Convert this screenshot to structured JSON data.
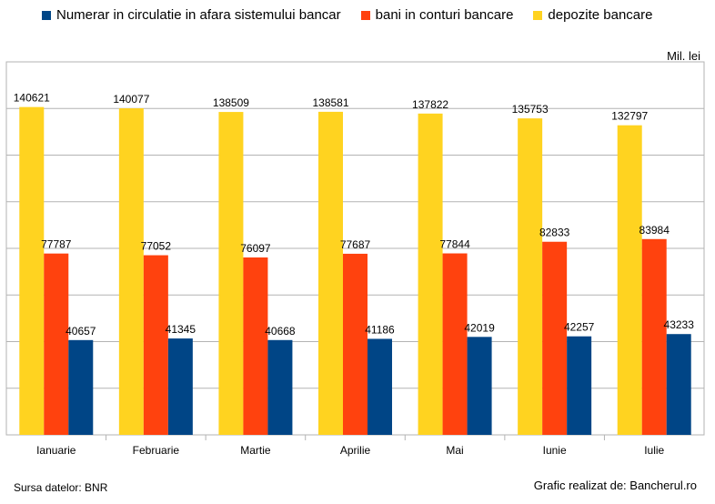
{
  "chart_data": {
    "type": "bar",
    "categories": [
      "Ianuarie",
      "Februarie",
      "Martie",
      "Aprilie",
      "Mai",
      "Iunie",
      "Iulie"
    ],
    "series": [
      {
        "name": "depozite bancare",
        "color": "#FFD320",
        "values": [
          140621,
          140077,
          138509,
          138581,
          137822,
          135753,
          132797
        ]
      },
      {
        "name": "bani in conturi bancare",
        "color": "#FF420E",
        "values": [
          77787,
          77052,
          76097,
          77687,
          77844,
          82833,
          83984
        ]
      },
      {
        "name": "Numerar in circulatie in afara sistemului bancar",
        "color": "#004586",
        "values": [
          40657,
          41345,
          40668,
          41186,
          42019,
          42257,
          43233
        ]
      }
    ],
    "legend_order": [
      2,
      1,
      0
    ],
    "legend_position": "top",
    "ylim": [
      0,
      160000
    ],
    "y_gridlines": 8,
    "grid": true,
    "unit_label": "Mil. lei"
  },
  "footer": {
    "source": "Sursa datelor: BNR",
    "credit": "Grafic realizat de: Bancherul.ro"
  }
}
